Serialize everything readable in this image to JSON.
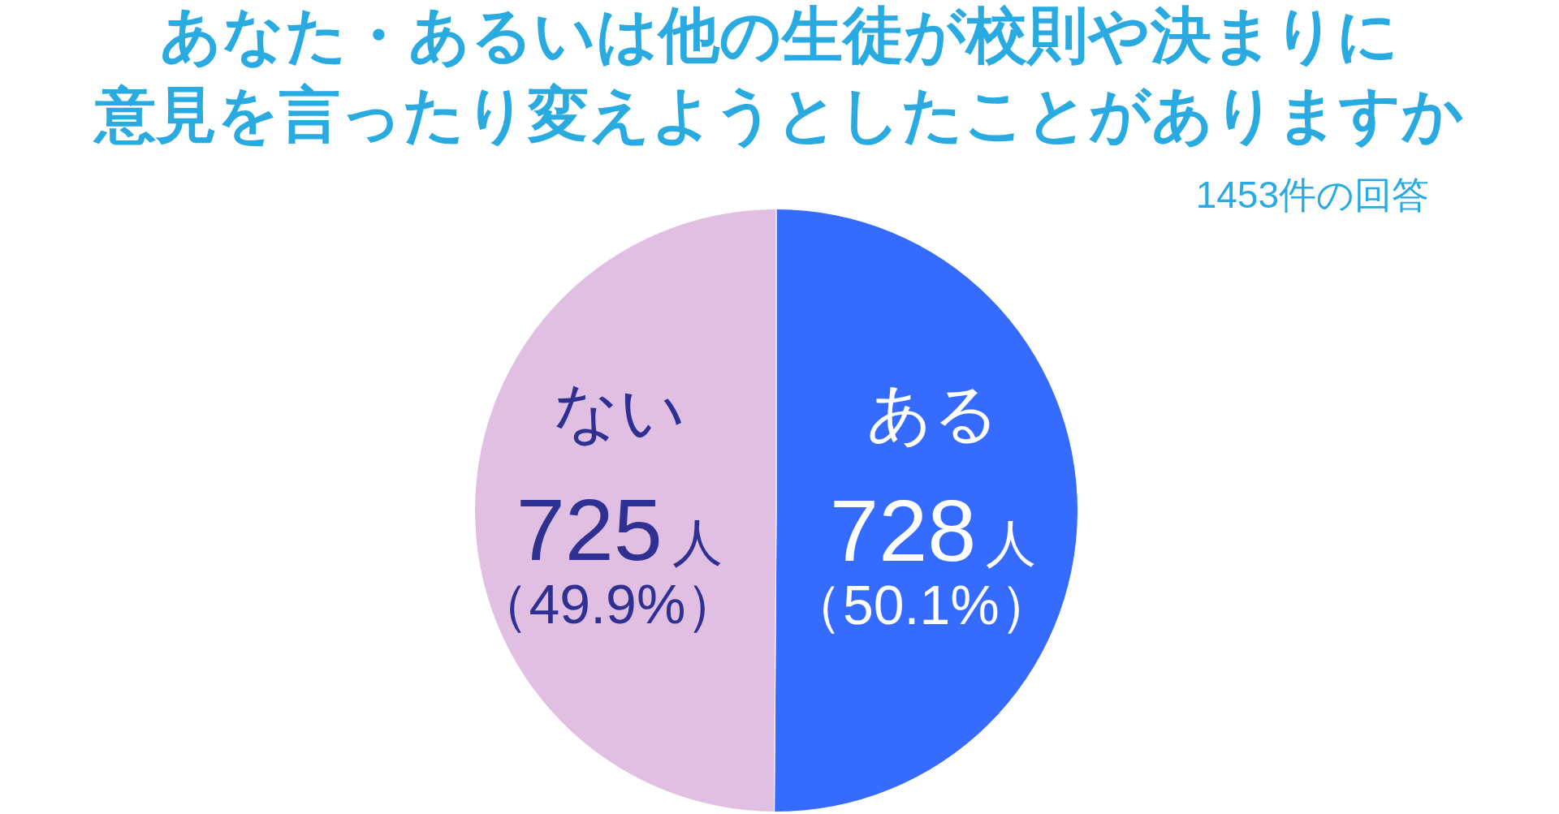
{
  "chart_data": {
    "type": "pie",
    "title": "あなた・あるいは他の生徒が校則や決まりに意見を言ったり変えようとしたことがありますか",
    "subtitle": "1453件の回答",
    "categories": [
      "ある",
      "ない"
    ],
    "values": [
      728,
      725
    ],
    "colors": [
      "#356cff",
      "#e0bfe2"
    ],
    "value_labels": [
      "728人（50.1%）",
      "725人（49.9%）"
    ],
    "legend": false
  }
}
